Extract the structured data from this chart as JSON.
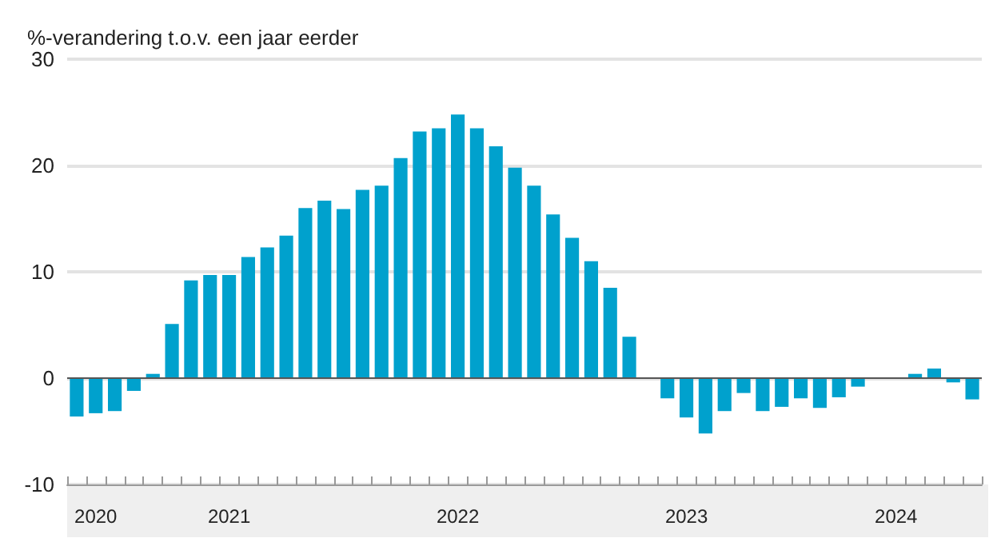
{
  "chart_data": {
    "type": "bar",
    "ylabel": "%-verandering t.o.v. een jaar eerder",
    "categories": [
      null,
      "2020",
      null,
      null,
      null,
      null,
      null,
      null,
      "2021",
      null,
      null,
      null,
      null,
      null,
      null,
      null,
      null,
      null,
      null,
      null,
      "2022",
      null,
      null,
      null,
      null,
      null,
      null,
      null,
      null,
      null,
      null,
      null,
      "2023",
      null,
      null,
      null,
      null,
      null,
      null,
      null,
      null,
      null,
      null,
      "2024",
      null,
      null,
      null,
      null
    ],
    "values": [
      -3.6,
      -3.3,
      -3.1,
      -1.2,
      0.4,
      5.1,
      9.2,
      9.7,
      9.7,
      11.4,
      12.3,
      13.4,
      16.0,
      16.7,
      15.9,
      17.7,
      18.1,
      20.7,
      23.2,
      23.5,
      24.8,
      23.5,
      21.8,
      19.8,
      18.1,
      15.4,
      13.2,
      11.0,
      8.5,
      3.9,
      0,
      -1.9,
      -3.7,
      -5.2,
      -3.1,
      -1.4,
      -3.1,
      -2.7,
      -1.9,
      -2.8,
      -1.8,
      -0.8,
      0,
      0,
      0.4,
      0.9,
      -0.4,
      -2.0
    ],
    "color": "#00a1cd",
    "ylim": [
      -10,
      30
    ],
    "yticks": [
      -10,
      0,
      10,
      20,
      30
    ],
    "grid": "y",
    "ref_lines": [
      {
        "axis": "y",
        "value": 0,
        "color": "#555555"
      }
    ]
  }
}
